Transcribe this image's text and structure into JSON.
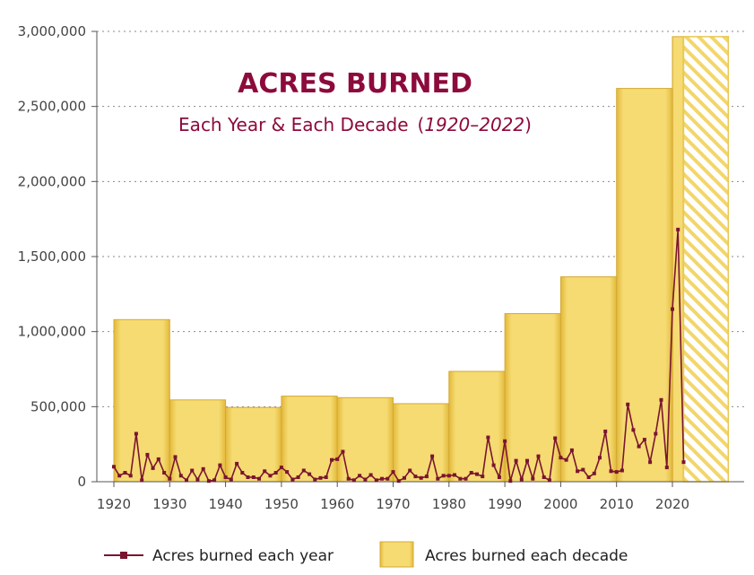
{
  "chart_data": {
    "type": "bar+line",
    "title": "ACRES BURNED",
    "subtitle_main": "Each Year & Each Decade",
    "subtitle_range": "1920–2022",
    "ylim": [
      0,
      3000000
    ],
    "xlim": [
      1920,
      2030
    ],
    "y_ticks": [
      0,
      500000,
      1000000,
      1500000,
      2000000,
      2500000,
      3000000
    ],
    "y_tick_labels": [
      "0",
      "500,000",
      "1,000,000",
      "1,500,000",
      "2,000,000",
      "2,500,000",
      "3,000,000"
    ],
    "x_ticks": [
      1920,
      1930,
      1940,
      1950,
      1960,
      1970,
      1980,
      1990,
      2000,
      2010,
      2020
    ],
    "x_tick_labels": [
      "1920",
      "1930",
      "1940",
      "1950",
      "1960",
      "1970",
      "1980",
      "1990",
      "2000",
      "2010",
      "2020"
    ],
    "grid": "horizontal dotted",
    "legend_position": "bottom",
    "decade_series": {
      "name": "Acres burned each decade",
      "color": "#f0d35c",
      "partial_decade_hatched": true,
      "decades": [
        1920,
        1930,
        1940,
        1950,
        1960,
        1970,
        1980,
        1990,
        2000,
        2010,
        2020
      ],
      "values": [
        1080000,
        545000,
        495000,
        570000,
        560000,
        520000,
        735000,
        1120000,
        1365000,
        2620000,
        2965000
      ]
    },
    "annual_series": {
      "name": "Acres burned each year",
      "color": "#7a1530",
      "years": [
        1920,
        1921,
        1922,
        1923,
        1924,
        1925,
        1926,
        1927,
        1928,
        1929,
        1930,
        1931,
        1932,
        1933,
        1934,
        1935,
        1936,
        1937,
        1938,
        1939,
        1940,
        1941,
        1942,
        1943,
        1944,
        1945,
        1946,
        1947,
        1948,
        1949,
        1950,
        1951,
        1952,
        1953,
        1954,
        1955,
        1956,
        1957,
        1958,
        1959,
        1960,
        1961,
        1962,
        1963,
        1964,
        1965,
        1966,
        1967,
        1968,
        1969,
        1970,
        1971,
        1972,
        1973,
        1974,
        1975,
        1976,
        1977,
        1978,
        1979,
        1980,
        1981,
        1982,
        1983,
        1984,
        1985,
        1986,
        1987,
        1988,
        1989,
        1990,
        1991,
        1992,
        1993,
        1994,
        1995,
        1996,
        1997,
        1998,
        1999,
        2000,
        2001,
        2002,
        2003,
        2004,
        2005,
        2006,
        2007,
        2008,
        2009,
        2010,
        2011,
        2012,
        2013,
        2014,
        2015,
        2016,
        2017,
        2018,
        2019,
        2020,
        2021,
        2022
      ],
      "values": [
        100000,
        40000,
        60000,
        40000,
        320000,
        10000,
        180000,
        90000,
        150000,
        60000,
        20000,
        165000,
        40000,
        10000,
        75000,
        15000,
        85000,
        5000,
        10000,
        110000,
        30000,
        15000,
        120000,
        60000,
        30000,
        30000,
        20000,
        70000,
        40000,
        60000,
        95000,
        65000,
        15000,
        30000,
        75000,
        50000,
        15000,
        25000,
        30000,
        145000,
        150000,
        200000,
        20000,
        10000,
        40000,
        15000,
        45000,
        10000,
        20000,
        20000,
        65000,
        5000,
        25000,
        75000,
        35000,
        25000,
        35000,
        170000,
        20000,
        40000,
        40000,
        45000,
        20000,
        20000,
        60000,
        50000,
        35000,
        295000,
        110000,
        30000,
        270000,
        5000,
        140000,
        15000,
        140000,
        20000,
        170000,
        30000,
        10000,
        290000,
        160000,
        145000,
        210000,
        70000,
        80000,
        30000,
        55000,
        160000,
        335000,
        70000,
        65000,
        75000,
        515000,
        345000,
        235000,
        280000,
        130000,
        320000,
        545000,
        95000,
        1150000,
        1680000,
        130000
      ]
    },
    "legend": [
      {
        "label": "Acres burned each year"
      },
      {
        "label": "Acres burned each decade"
      }
    ]
  }
}
